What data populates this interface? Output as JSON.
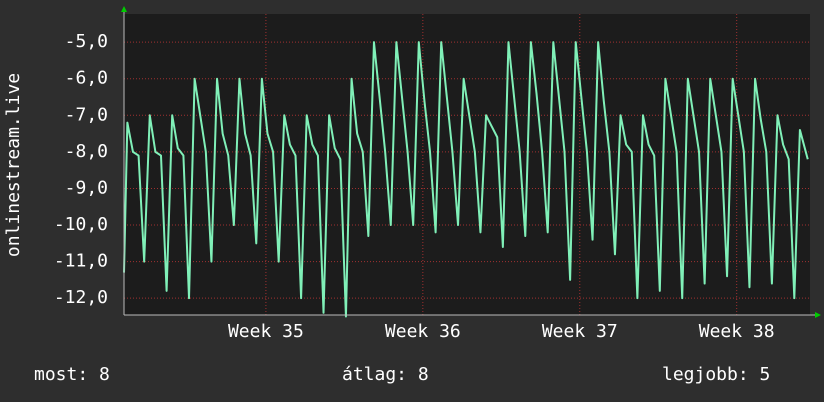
{
  "chart_data": {
    "type": "line",
    "y_label": "onlinestream.live",
    "xlim": [
      0,
      30.6
    ],
    "xticks": [
      {
        "value": 6.33,
        "label": "Week 35"
      },
      {
        "value": 13.33,
        "label": "Week 36"
      },
      {
        "value": 20.33,
        "label": "Week 37"
      },
      {
        "value": 27.33,
        "label": "Week 38"
      }
    ],
    "ylim": [
      -12.46,
      -4.23
    ],
    "yticks": [
      {
        "value": -5,
        "label": "-5,0"
      },
      {
        "value": -6,
        "label": "-6,0"
      },
      {
        "value": -7,
        "label": "-7,0"
      },
      {
        "value": -8,
        "label": "-8,0"
      },
      {
        "value": -9,
        "label": "-9,0"
      },
      {
        "value": -10,
        "label": "-10,0"
      },
      {
        "value": -11,
        "label": "-11,0"
      },
      {
        "value": -12,
        "label": "-12,0"
      }
    ],
    "grid": true,
    "series": [
      {
        "color": "#80f0b8",
        "x": [
          0,
          0.15,
          0.4,
          0.65,
          0.9,
          1.15,
          1.4,
          1.65,
          1.9,
          2.15,
          2.4,
          2.65,
          2.9,
          3.15,
          3.4,
          3.65,
          3.9,
          4.15,
          4.4,
          4.65,
          4.9,
          5.15,
          5.4,
          5.65,
          5.9,
          6.15,
          6.4,
          6.65,
          6.9,
          7.15,
          7.4,
          7.65,
          7.9,
          8.15,
          8.4,
          8.65,
          8.9,
          9.15,
          9.4,
          9.65,
          9.9,
          10.15,
          10.4,
          10.65,
          10.9,
          11.15,
          11.4,
          11.65,
          11.9,
          12.15,
          12.4,
          12.65,
          12.9,
          13.15,
          13.4,
          13.65,
          13.9,
          14.15,
          14.4,
          14.65,
          14.9,
          15.15,
          15.4,
          15.65,
          15.9,
          16.15,
          16.4,
          16.65,
          16.9,
          17.15,
          17.4,
          17.65,
          17.9,
          18.15,
          18.4,
          18.65,
          18.9,
          19.15,
          19.4,
          19.65,
          19.9,
          20.15,
          20.4,
          20.65,
          20.9,
          21.15,
          21.4,
          21.65,
          21.9,
          22.15,
          22.4,
          22.65,
          22.9,
          23.15,
          23.4,
          23.65,
          23.9,
          24.15,
          24.4,
          24.65,
          24.9,
          25.15,
          25.4,
          25.65,
          25.9,
          26.15,
          26.4,
          26.65,
          26.9,
          27.15,
          27.4,
          27.65,
          27.9,
          28.15,
          28.4,
          28.65,
          28.9,
          29.15,
          29.4,
          29.65,
          29.9,
          30.15,
          30.5
        ],
        "values": [
          -11.3,
          -7.2,
          -8,
          -8.1,
          -11,
          -7,
          -8,
          -8.1,
          -11.8,
          -7,
          -7.9,
          -8.1,
          -12,
          -6,
          -7,
          -8,
          -11,
          -6,
          -7.5,
          -8.1,
          -10,
          -6,
          -7.5,
          -8.1,
          -10.5,
          -6,
          -7.5,
          -8,
          -11,
          -7,
          -7.8,
          -8.1,
          -12,
          -7,
          -7.8,
          -8.1,
          -12.4,
          -7,
          -7.9,
          -8.2,
          -12.5,
          -6,
          -7.5,
          -8,
          -10.3,
          -5,
          -6.5,
          -8,
          -10,
          -5,
          -6.5,
          -8,
          -10,
          -5,
          -6.6,
          -8,
          -10.2,
          -5,
          -6.5,
          -8,
          -10,
          -6,
          -7,
          -8,
          -10.2,
          -7,
          -7.3,
          -7.6,
          -10.6,
          -5,
          -6.5,
          -8,
          -10.3,
          -5,
          -6.4,
          -8,
          -10.2,
          -5,
          -6.5,
          -8,
          -11.5,
          -5,
          -6.5,
          -8,
          -10.4,
          -5,
          -6.6,
          -8,
          -10.8,
          -7,
          -7.8,
          -8,
          -12,
          -7,
          -7.8,
          -8.1,
          -11.8,
          -6,
          -7,
          -8,
          -12,
          -6,
          -7,
          -8,
          -11.6,
          -6,
          -7,
          -8,
          -11.4,
          -6,
          -7,
          -8,
          -11.7,
          -6,
          -7.1,
          -8,
          -11.6,
          -7,
          -7.8,
          -8.2,
          -12,
          -7.4,
          -8.2
        ]
      }
    ],
    "stats": [
      {
        "label": "most:",
        "value": 8
      },
      {
        "label": "átlag:",
        "value": 8
      },
      {
        "label": "legjobb:",
        "value": 5
      }
    ]
  }
}
